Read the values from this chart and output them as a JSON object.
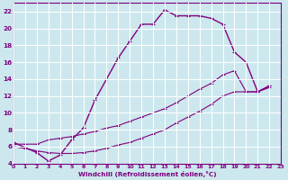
{
  "xlabel": "Windchill (Refroidissement éolien,°C)",
  "bg_color": "#cce8ee",
  "line_color": "#800080",
  "grid_color": "#ffffff",
  "xmin": 0,
  "xmax": 23,
  "ymin": 4,
  "ymax": 23,
  "yticks": [
    4,
    6,
    8,
    10,
    12,
    14,
    16,
    18,
    20,
    22
  ],
  "xticks": [
    0,
    1,
    2,
    3,
    4,
    5,
    6,
    7,
    8,
    9,
    10,
    11,
    12,
    13,
    14,
    15,
    16,
    17,
    18,
    19,
    20,
    21,
    22,
    23
  ],
  "series1_x": [
    0,
    1,
    2,
    3,
    4,
    5,
    6,
    7,
    8,
    9,
    10,
    11,
    12,
    13,
    14,
    15,
    16,
    17,
    18,
    19,
    20,
    21,
    22
  ],
  "series1_y": [
    6.5,
    5.9,
    5.3,
    4.3,
    5.0,
    6.8,
    8.2,
    11.5,
    14.0,
    16.5,
    18.5,
    20.5,
    20.5,
    22.2,
    21.5,
    21.5,
    21.5,
    21.2,
    20.5,
    17.2,
    16.0,
    12.5,
    13.2
  ],
  "series2_x": [
    0,
    1,
    2,
    3,
    4,
    5,
    6,
    7,
    8,
    9,
    10,
    11,
    12,
    13,
    14,
    15,
    16,
    17,
    18,
    19,
    20,
    21,
    22
  ],
  "series2_y": [
    6.3,
    6.3,
    6.3,
    6.8,
    7.0,
    7.2,
    7.5,
    7.8,
    8.2,
    8.5,
    9.0,
    9.5,
    10.0,
    10.5,
    11.2,
    12.0,
    12.8,
    13.5,
    14.5,
    15.0,
    12.5,
    12.5,
    13.2
  ],
  "series3_x": [
    0,
    1,
    2,
    3,
    4,
    5,
    6,
    7,
    8,
    9,
    10,
    11,
    12,
    13,
    14,
    15,
    16,
    17,
    18,
    19,
    20,
    21,
    22
  ],
  "series3_y": [
    6.0,
    5.8,
    5.5,
    5.3,
    5.2,
    5.2,
    5.3,
    5.5,
    5.8,
    6.2,
    6.5,
    7.0,
    7.5,
    8.0,
    8.8,
    9.5,
    10.2,
    11.0,
    12.0,
    12.5,
    12.5,
    12.5,
    13.0
  ]
}
